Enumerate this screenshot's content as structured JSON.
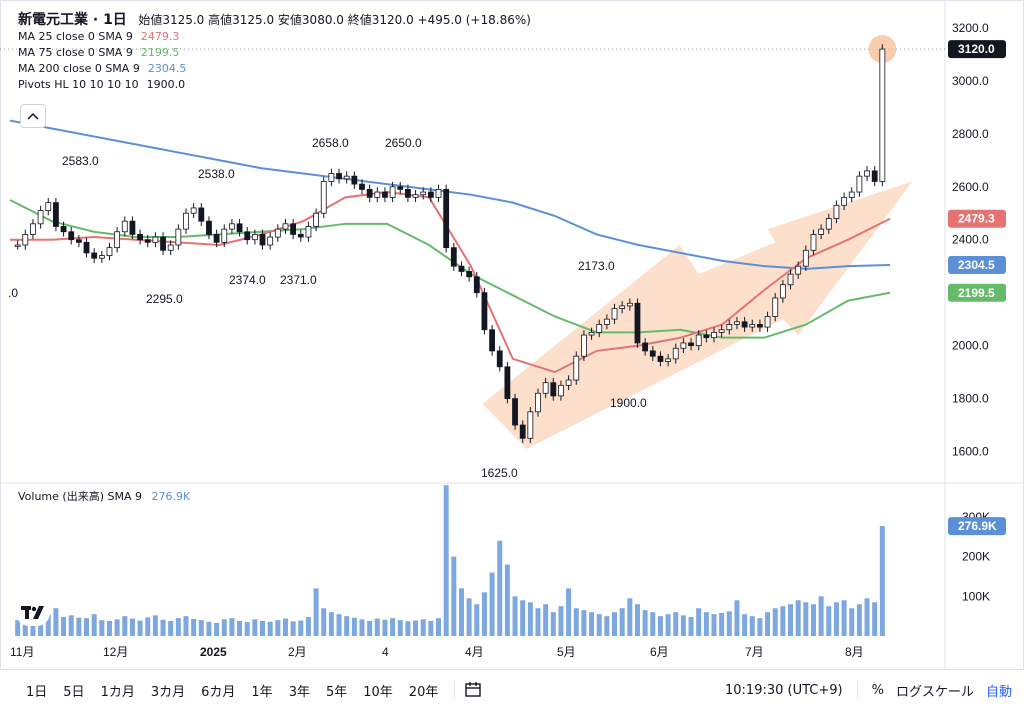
{
  "legend": {
    "title": "新電元工業 · 1日",
    "ohlc": "始値3125.0 高値3125.0 安値3080.0 終値3120.0 +495.0 (+18.86%)",
    "ma25_label": "MA 25 close 0 SMA 9",
    "ma25_value": "2479.3",
    "ma75_label": "MA 75 close 0 SMA 9",
    "ma75_value": "2199.5",
    "ma200_label": "MA 200 close 0 SMA 9",
    "ma200_value": "2304.5",
    "pivots_label": "Pivots HL 10 10 10 10",
    "pivots_value": "1900.0"
  },
  "volume_legend": {
    "label": "Volume (出来高)",
    "sma": "SMA 9",
    "value": "276.9K"
  },
  "toolbar": {
    "timeframes": [
      "1日",
      "5日",
      "1カ月",
      "3カ月",
      "6カ月",
      "1年",
      "3年",
      "5年",
      "10年",
      "20年"
    ],
    "time": "10:19:30 (UTC+9)",
    "percent": "%",
    "log": "ログスケール",
    "auto": "自動"
  },
  "colors": {
    "up": "#ffffff",
    "down": "#131722",
    "ma25": "#e57373",
    "ma75": "#66bb6a",
    "ma200": "#5b8fd6",
    "volume": "#7da7e0",
    "arrow": "#fbd5bb",
    "price_tag": "#131722"
  },
  "chart_data": {
    "type": "candlestick",
    "price_axis": {
      "ticks": [
        1600,
        1800,
        2000,
        2200,
        2400,
        2600,
        2800,
        3000,
        3200
      ],
      "labels": [
        "1600.0",
        "1800.0",
        "2000.0",
        "2200.0",
        "2400.0",
        "2600.0",
        "2800.0",
        "3000.0",
        "3200.0"
      ],
      "ylim": [
        1500,
        3260
      ]
    },
    "volume_axis": {
      "ticks": [
        100000,
        200000,
        300000
      ],
      "labels": [
        "100K",
        "200K",
        "300K"
      ],
      "ylim": [
        0,
        330000
      ]
    },
    "x_labels": [
      "11月",
      "12月",
      "2025",
      "2月",
      "4",
      "4月",
      "5月",
      "6月",
      "7月",
      "8月"
    ],
    "price_badges": [
      {
        "label": "3120.0",
        "value": 3120,
        "color": "#131722"
      },
      {
        "label": "2479.3",
        "value": 2479.3,
        "color": "#e57373"
      },
      {
        "label": "2304.5",
        "value": 2304.5,
        "color": "#5b8fd6"
      },
      {
        "label": "2199.5",
        "value": 2199.5,
        "color": "#66bb6a"
      }
    ],
    "volume_badge": {
      "label": "276.9K",
      "value": 276900
    },
    "pivot_labels": [
      {
        "text": "2583.0",
        "value": 2583
      },
      {
        "text": "2538.0",
        "value": 2538
      },
      {
        "text": "2658.0",
        "value": 2658
      },
      {
        "text": "2650.0",
        "value": 2650
      },
      {
        "text": "2295.0",
        "value": 2295
      },
      {
        "text": "2374.0",
        "value": 2374
      },
      {
        "text": "2371.0",
        "value": 2371
      },
      {
        "text": "2173.0",
        "value": 2173
      },
      {
        "text": "1900.0",
        "value": 1900
      },
      {
        "text": "1625.0",
        "value": 1625
      },
      {
        "text": ".0",
        "value": null
      }
    ],
    "ma200": [
      2850,
      2820,
      2790,
      2760,
      2730,
      2700,
      2670,
      2650,
      2630,
      2610,
      2590,
      2570,
      2540,
      2490,
      2420,
      2380,
      2350,
      2320,
      2300,
      2290,
      2300,
      2304.5
    ],
    "ma75": [
      2550,
      2470,
      2430,
      2410,
      2410,
      2420,
      2430,
      2440,
      2460,
      2460,
      2380,
      2270,
      2190,
      2110,
      2050,
      2050,
      2060,
      2030,
      2030,
      2080,
      2170,
      2199.5
    ],
    "ma25": [
      2400,
      2400,
      2410,
      2400,
      2390,
      2380,
      2420,
      2470,
      2560,
      2580,
      2560,
      2300,
      1950,
      1900,
      1980,
      2000,
      2030,
      2080,
      2210,
      2330,
      2400,
      2479.3
    ],
    "closes": [
      2380,
      2420,
      2460,
      2510,
      2540,
      2450,
      2430,
      2400,
      2390,
      2350,
      2330,
      2340,
      2370,
      2430,
      2470,
      2420,
      2400,
      2390,
      2410,
      2360,
      2380,
      2440,
      2500,
      2520,
      2470,
      2420,
      2390,
      2440,
      2460,
      2430,
      2400,
      2420,
      2380,
      2410,
      2440,
      2460,
      2420,
      2410,
      2450,
      2500,
      2620,
      2650,
      2630,
      2640,
      2610,
      2590,
      2560,
      2580,
      2560,
      2600,
      2590,
      2560,
      2570,
      2580,
      2560,
      2590,
      2370,
      2300,
      2280,
      2260,
      2200,
      2060,
      1980,
      1920,
      1800,
      1700,
      1650,
      1750,
      1820,
      1860,
      1810,
      1850,
      1870,
      1960,
      2040,
      2050,
      2080,
      2100,
      2140,
      2150,
      2160,
      2010,
      1980,
      1960,
      1940,
      1950,
      1990,
      2010,
      2000,
      2040,
      2030,
      2050,
      2060,
      2080,
      2090,
      2070,
      2080,
      2070,
      2110,
      2180,
      2230,
      2270,
      2300,
      2360,
      2420,
      2440,
      2480,
      2530,
      2560,
      2580,
      2640,
      2660,
      2620,
      3120
    ],
    "volumes": [
      40,
      45,
      60,
      50,
      55,
      70,
      48,
      52,
      46,
      45,
      55,
      40,
      38,
      42,
      50,
      44,
      39,
      47,
      52,
      41,
      38,
      45,
      50,
      43,
      40,
      36,
      33,
      42,
      45,
      38,
      35,
      42,
      38,
      36,
      40,
      44,
      37,
      39,
      48,
      120,
      70,
      60,
      55,
      50,
      46,
      42,
      38,
      44,
      41,
      45,
      40,
      37,
      39,
      42,
      38,
      45,
      380,
      200,
      120,
      95,
      80,
      110,
      160,
      240,
      180,
      100,
      90,
      85,
      70,
      80,
      60,
      75,
      120,
      70,
      65,
      60,
      55,
      50,
      60,
      70,
      95,
      80,
      65,
      60,
      50,
      55,
      60,
      52,
      48,
      70,
      60,
      55,
      58,
      62,
      90,
      55,
      50,
      45,
      60,
      70,
      75,
      80,
      90,
      85,
      80,
      100,
      75,
      85,
      90,
      70,
      80,
      95,
      85,
      276.9
    ]
  }
}
